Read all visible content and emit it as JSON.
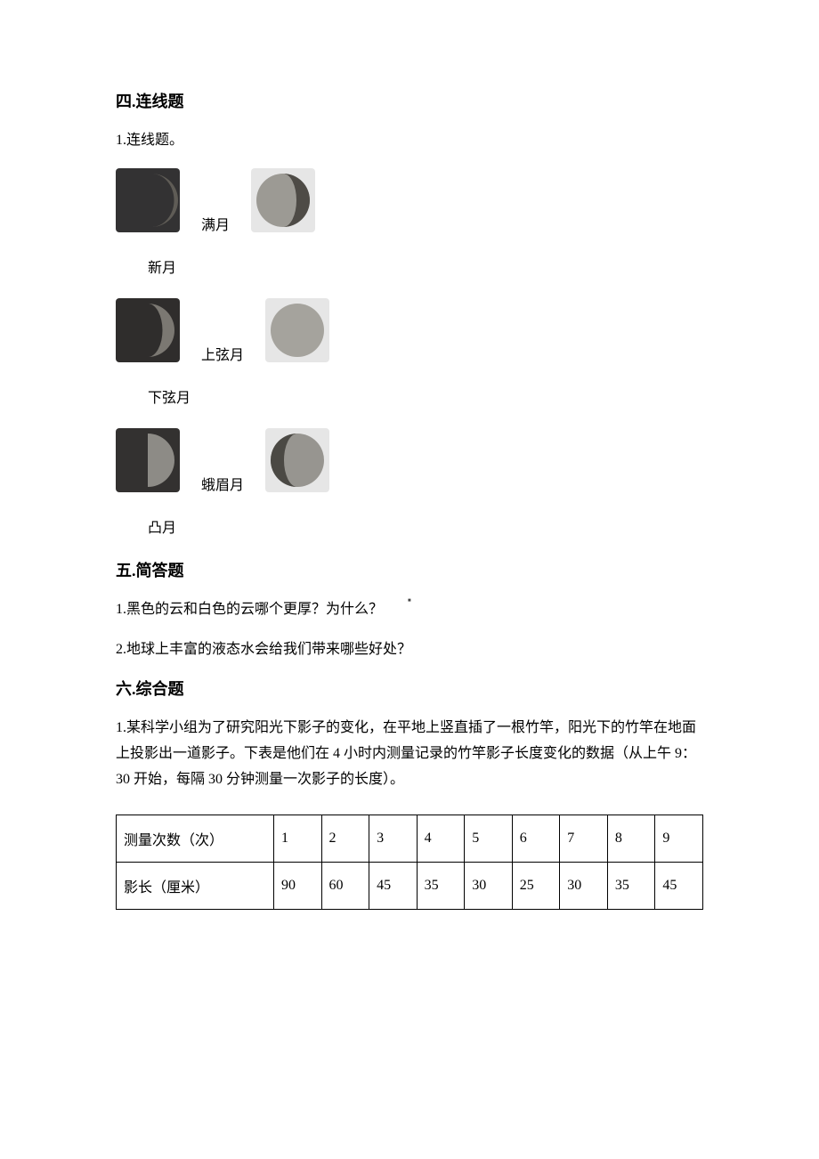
{
  "section4": {
    "heading": "四.连线题",
    "q1": "1.连线题。",
    "pairs": [
      {
        "label": "满月"
      },
      {
        "label_only": "新月"
      },
      {
        "label": "上弦月"
      },
      {
        "label_only": "下弦月"
      },
      {
        "label": "蛾眉月"
      },
      {
        "label_only": "凸月"
      }
    ],
    "moons": {
      "left1": {
        "bg": "#333233",
        "mode": "rightSliver",
        "lit": "#5f5c56"
      },
      "left2": {
        "bg": "#2f2d2c",
        "mode": "rightCrescent",
        "lit": "#7b7872"
      },
      "left3": {
        "bg": "#333130",
        "mode": "rightHalf",
        "lit": "#8d8b86"
      },
      "right1": {
        "bg": "#e6e6e6",
        "mode": "waningGibbous",
        "lit": "#9c9a94",
        "shadow": "#4e4b46"
      },
      "right2": {
        "bg": "#e6e6e6",
        "mode": "full",
        "lit": "#a5a39d"
      },
      "right3": {
        "bg": "#e6e6e6",
        "mode": "waxingGibbous",
        "lit": "#979590",
        "shadow": "#4b4944"
      }
    }
  },
  "section5": {
    "heading": "五.简答题",
    "q1": "1.黑色的云和白色的云哪个更厚？为什么？",
    "q2": "2.地球上丰富的液态水会给我们带来哪些好处？"
  },
  "section6": {
    "heading": "六.综合题",
    "q1": "1.某科学小组为了研究阳光下影子的变化，在平地上竖直插了一根竹竿，阳光下的竹竿在地面上投影出一道影子。下表是他们在 4 小时内测量记录的竹竿影子长度变化的数据（从上午 9：30 开始，每隔 30 分钟测量一次影子的长度）。",
    "table": {
      "col_header_label": "测量次数（次）",
      "row_label": "影长（厘米）",
      "counts": [
        "1",
        "2",
        "3",
        "4",
        "5",
        "6",
        "7",
        "8",
        "9"
      ],
      "shadows": [
        "90",
        "60",
        "45",
        "35",
        "30",
        "25",
        "30",
        "35",
        "45"
      ]
    }
  },
  "style": {
    "page_bg": "#ffffff",
    "text_color": "#000000",
    "heading_fontsize": 18,
    "body_fontsize": 16,
    "table_border_color": "#000000"
  }
}
